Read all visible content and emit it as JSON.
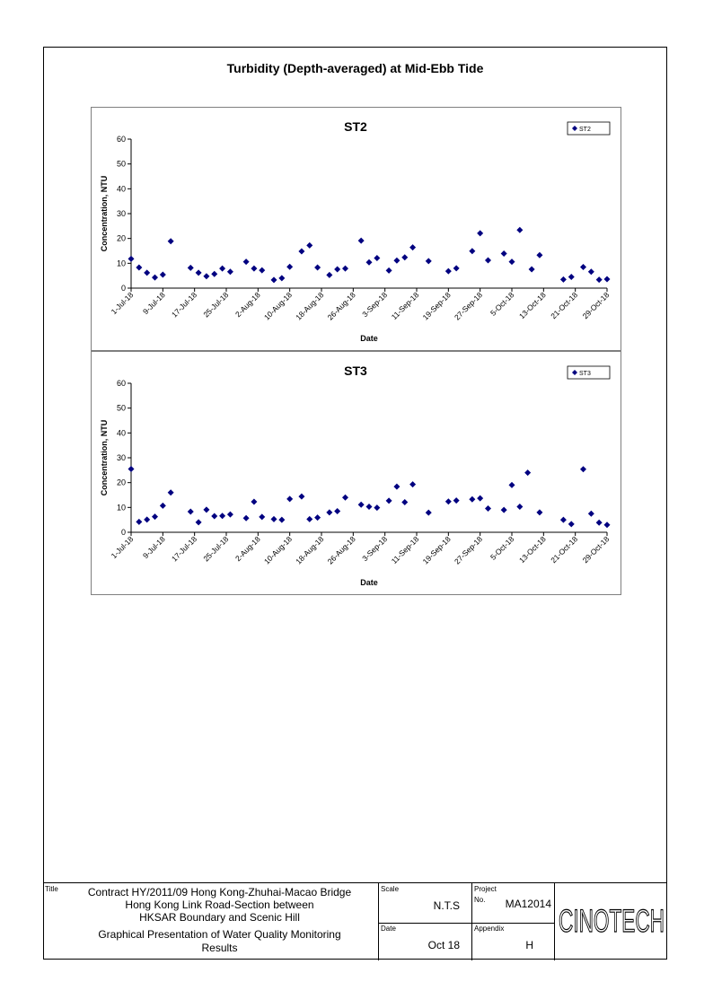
{
  "page": {
    "title": "Turbidity (Depth-averaged) at Mid-Ebb Tide"
  },
  "chart_data": [
    {
      "type": "scatter",
      "title": "ST2",
      "xlabel": "Date",
      "ylabel": "Concentration, NTU",
      "ylim": [
        0,
        60
      ],
      "yticks": [
        0,
        10,
        20,
        30,
        40,
        50,
        60
      ],
      "xlim": [
        "2018-07-01",
        "2018-10-29"
      ],
      "xtick_labels": [
        "1-Jul-18",
        "9-Jul-18",
        "17-Jul-18",
        "25-Jul-18",
        "2-Aug-18",
        "10-Aug-18",
        "18-Aug-18",
        "26-Aug-18",
        "3-Sep-18",
        "11-Sep-18",
        "19-Sep-18",
        "27-Sep-18",
        "5-Oct-18",
        "13-Oct-18",
        "21-Oct-18",
        "29-Oct-18"
      ],
      "legend": "top-right",
      "color": "#000080",
      "series": [
        {
          "name": "ST2",
          "x": [
            "2018-07-01",
            "2018-07-03",
            "2018-07-05",
            "2018-07-07",
            "2018-07-09",
            "2018-07-11",
            "2018-07-16",
            "2018-07-18",
            "2018-07-20",
            "2018-07-22",
            "2018-07-24",
            "2018-07-26",
            "2018-07-30",
            "2018-08-01",
            "2018-08-03",
            "2018-08-06",
            "2018-08-08",
            "2018-08-10",
            "2018-08-13",
            "2018-08-15",
            "2018-08-17",
            "2018-08-20",
            "2018-08-22",
            "2018-08-24",
            "2018-08-28",
            "2018-08-30",
            "2018-09-01",
            "2018-09-04",
            "2018-09-06",
            "2018-09-08",
            "2018-09-10",
            "2018-09-14",
            "2018-09-19",
            "2018-09-21",
            "2018-09-25",
            "2018-09-27",
            "2018-09-29",
            "2018-10-03",
            "2018-10-05",
            "2018-10-07",
            "2018-10-10",
            "2018-10-12",
            "2018-10-18",
            "2018-10-20",
            "2018-10-23",
            "2018-10-25",
            "2018-10-27",
            "2018-10-29"
          ],
          "y": [
            11.8,
            8.3,
            6.2,
            4.3,
            5.4,
            18.9,
            8.2,
            6.2,
            4.8,
            5.7,
            7.9,
            6.6,
            10.6,
            7.9,
            7.2,
            3.3,
            4.0,
            8.6,
            14.8,
            17.2,
            8.3,
            5.3,
            7.6,
            7.9,
            19.1,
            10.4,
            12.1,
            7.1,
            11.1,
            12.4,
            16.4,
            10.9,
            6.8,
            8.0,
            14.9,
            22.1,
            11.2,
            13.9,
            10.6,
            23.4,
            7.6,
            13.3,
            3.5,
            4.5,
            8.5,
            6.6,
            3.4,
            3.6
          ]
        }
      ]
    },
    {
      "type": "scatter",
      "title": "ST3",
      "xlabel": "Date",
      "ylabel": "Concentration, NTU",
      "ylim": [
        0,
        60
      ],
      "yticks": [
        0,
        10,
        20,
        30,
        40,
        50,
        60
      ],
      "xlim": [
        "2018-07-01",
        "2018-10-29"
      ],
      "xtick_labels": [
        "1-Jul-18",
        "9-Jul-18",
        "17-Jul-18",
        "25-Jul-18",
        "2-Aug-18",
        "10-Aug-18",
        "18-Aug-18",
        "26-Aug-18",
        "3-Sep-18",
        "11-Sep-18",
        "19-Sep-18",
        "27-Sep-18",
        "5-Oct-18",
        "13-Oct-18",
        "21-Oct-18",
        "29-Oct-18"
      ],
      "legend": "top-right",
      "color": "#000080",
      "series": [
        {
          "name": "ST3",
          "x": [
            "2018-07-01",
            "2018-07-03",
            "2018-07-05",
            "2018-07-07",
            "2018-07-09",
            "2018-07-11",
            "2018-07-16",
            "2018-07-18",
            "2018-07-20",
            "2018-07-22",
            "2018-07-24",
            "2018-07-26",
            "2018-07-30",
            "2018-08-01",
            "2018-08-03",
            "2018-08-06",
            "2018-08-08",
            "2018-08-10",
            "2018-08-13",
            "2018-08-15",
            "2018-08-17",
            "2018-08-20",
            "2018-08-22",
            "2018-08-24",
            "2018-08-28",
            "2018-08-30",
            "2018-09-01",
            "2018-09-04",
            "2018-09-06",
            "2018-09-08",
            "2018-09-10",
            "2018-09-14",
            "2018-09-19",
            "2018-09-21",
            "2018-09-25",
            "2018-09-27",
            "2018-09-29",
            "2018-10-03",
            "2018-10-05",
            "2018-10-07",
            "2018-10-09",
            "2018-10-12",
            "2018-10-18",
            "2018-10-20",
            "2018-10-23",
            "2018-10-25",
            "2018-10-27",
            "2018-10-29"
          ],
          "y": [
            25.5,
            4.2,
            5.1,
            6.3,
            10.7,
            16.0,
            8.3,
            4.0,
            9.1,
            6.5,
            6.6,
            7.2,
            5.7,
            12.3,
            6.2,
            5.3,
            5.0,
            13.4,
            14.4,
            5.3,
            5.9,
            8.0,
            8.5,
            14.0,
            11.1,
            10.3,
            9.9,
            12.7,
            18.4,
            12.1,
            19.3,
            7.9,
            12.4,
            12.8,
            13.3,
            13.7,
            9.6,
            9.0,
            19.0,
            10.3,
            24.0,
            8.0,
            5.0,
            3.3,
            25.4,
            7.5,
            3.9,
            3.0
          ]
        }
      ]
    }
  ],
  "title_block": {
    "title_label": "Title",
    "title_line1": "Contract HY/2011/09 Hong Kong-Zhuhai-Macao Bridge",
    "title_line2": "Hong Kong Link Road-Section between",
    "title_line3": "HKSAR Boundary and Scenic Hill",
    "title_line4": "Graphical Presentation of Water Quality Monitoring",
    "title_line5": "Results",
    "scale_label": "Scale",
    "scale_value": "N.T.S",
    "date_label": "Date",
    "date_value": "Oct 18",
    "project_label": "Project",
    "no_label": "No.",
    "project_no": "MA12014",
    "appendix_label": "Appendix",
    "appendix_value": "H",
    "logo_text": "CINOTECH"
  }
}
